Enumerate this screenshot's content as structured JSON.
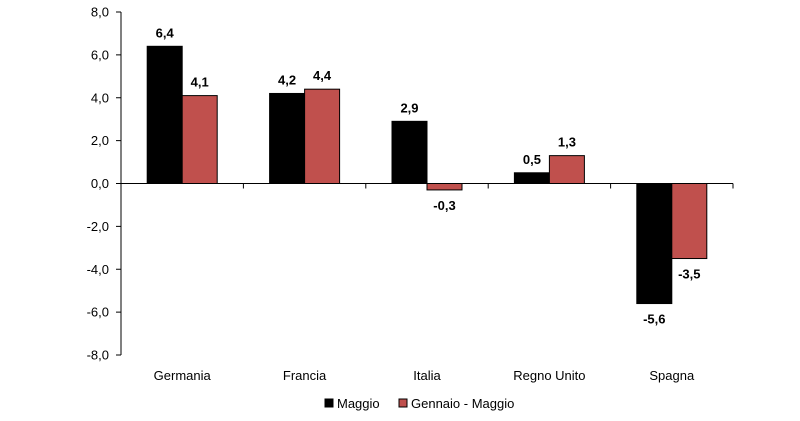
{
  "chart_data": {
    "type": "bar",
    "categories": [
      "Germania",
      "Francia",
      "Italia",
      "Regno Unito",
      "Spagna"
    ],
    "series": [
      {
        "name": "Maggio",
        "color": "#000000",
        "values": [
          6.4,
          4.2,
          2.9,
          0.5,
          -5.6
        ],
        "labels": [
          "6,4",
          "4,2",
          "2,9",
          "0,5",
          "-5,6"
        ]
      },
      {
        "name": "Gennaio - Maggio",
        "color": "#C0504D",
        "values": [
          4.1,
          4.4,
          -0.3,
          1.3,
          -3.5
        ],
        "labels": [
          "4,1",
          "4,4",
          "-0,3",
          "1,3",
          "-3,5"
        ]
      }
    ],
    "ylim": [
      -8,
      8
    ],
    "yticks": [
      8,
      6,
      4,
      2,
      0,
      -2,
      -4,
      -6,
      -8
    ],
    "ytick_labels": [
      "8,0",
      "6,0",
      "4,0",
      "2,0",
      "0,0",
      "-2,0",
      "-4,0",
      "-6,0",
      "-8,0"
    ],
    "title": "",
    "xlabel": "",
    "ylabel": "",
    "grid": false,
    "legend_position": "bottom"
  }
}
